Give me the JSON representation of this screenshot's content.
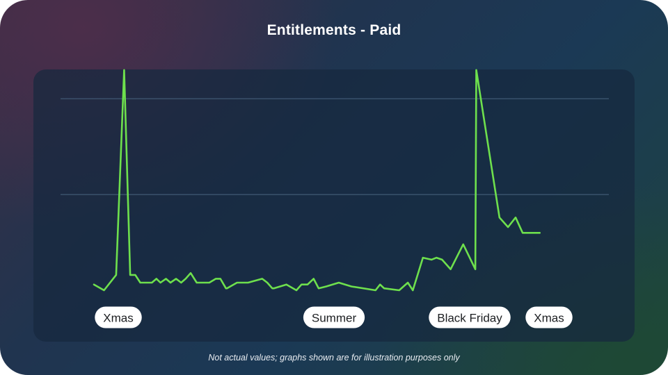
{
  "title": "Entitlements - Paid",
  "footnote": "Not actual values; graphs shown are for illustration purposes only",
  "colors": {
    "line": "#6ee04d",
    "panel": "#16283e",
    "label_bg": "#ffffff",
    "label_text": "#1c1e21"
  },
  "chart_data": {
    "type": "line",
    "title": "Entitlements - Paid",
    "xlabel": "",
    "ylabel": "",
    "grid": true,
    "ylim": [
      0,
      120
    ],
    "yticks": [
      50,
      100
    ],
    "xlim": [
      0,
      100
    ],
    "x": [
      0,
      2,
      4.4,
      6,
      7.2,
      8.2,
      9.2,
      10.3,
      11.5,
      12.4,
      13.2,
      14.3,
      15.2,
      16.3,
      17.3,
      18.2,
      19.2,
      20.4,
      22.9,
      24.2,
      25.1,
      26.2,
      26.4,
      28.4,
      28.9,
      30.6,
      33.4,
      34.4,
      35.4,
      35.7,
      38.2,
      40.2,
      41.2,
      42.4,
      43.6,
      44.6,
      46.1,
      48.6,
      51.1,
      55.9,
      56.8,
      57.6,
      60.6,
      62.3,
      63.3,
      65.3,
      67.0,
      68.0,
      69.1,
      70.8,
      73.3,
      75.7,
      75.9,
      80.5,
      82.2,
      83.7,
      85.1,
      88.5
    ],
    "series": [
      {
        "values": [
          3,
          0,
          8,
          115,
          8,
          8,
          4,
          4,
          4,
          6,
          4,
          6,
          4,
          6,
          4,
          6,
          9,
          4,
          4,
          6,
          6,
          1,
          1,
          4,
          4,
          4,
          6,
          4,
          1,
          1,
          3,
          0,
          3,
          3,
          6,
          1,
          2,
          4,
          2,
          0,
          3,
          1,
          0,
          4,
          0,
          17,
          16,
          17,
          16,
          11,
          24,
          11,
          115,
          38,
          33,
          38,
          30,
          30
        ]
      }
    ],
    "annotations": [
      "Xmas",
      "Summer",
      "Black Friday",
      "Xmas"
    ]
  }
}
